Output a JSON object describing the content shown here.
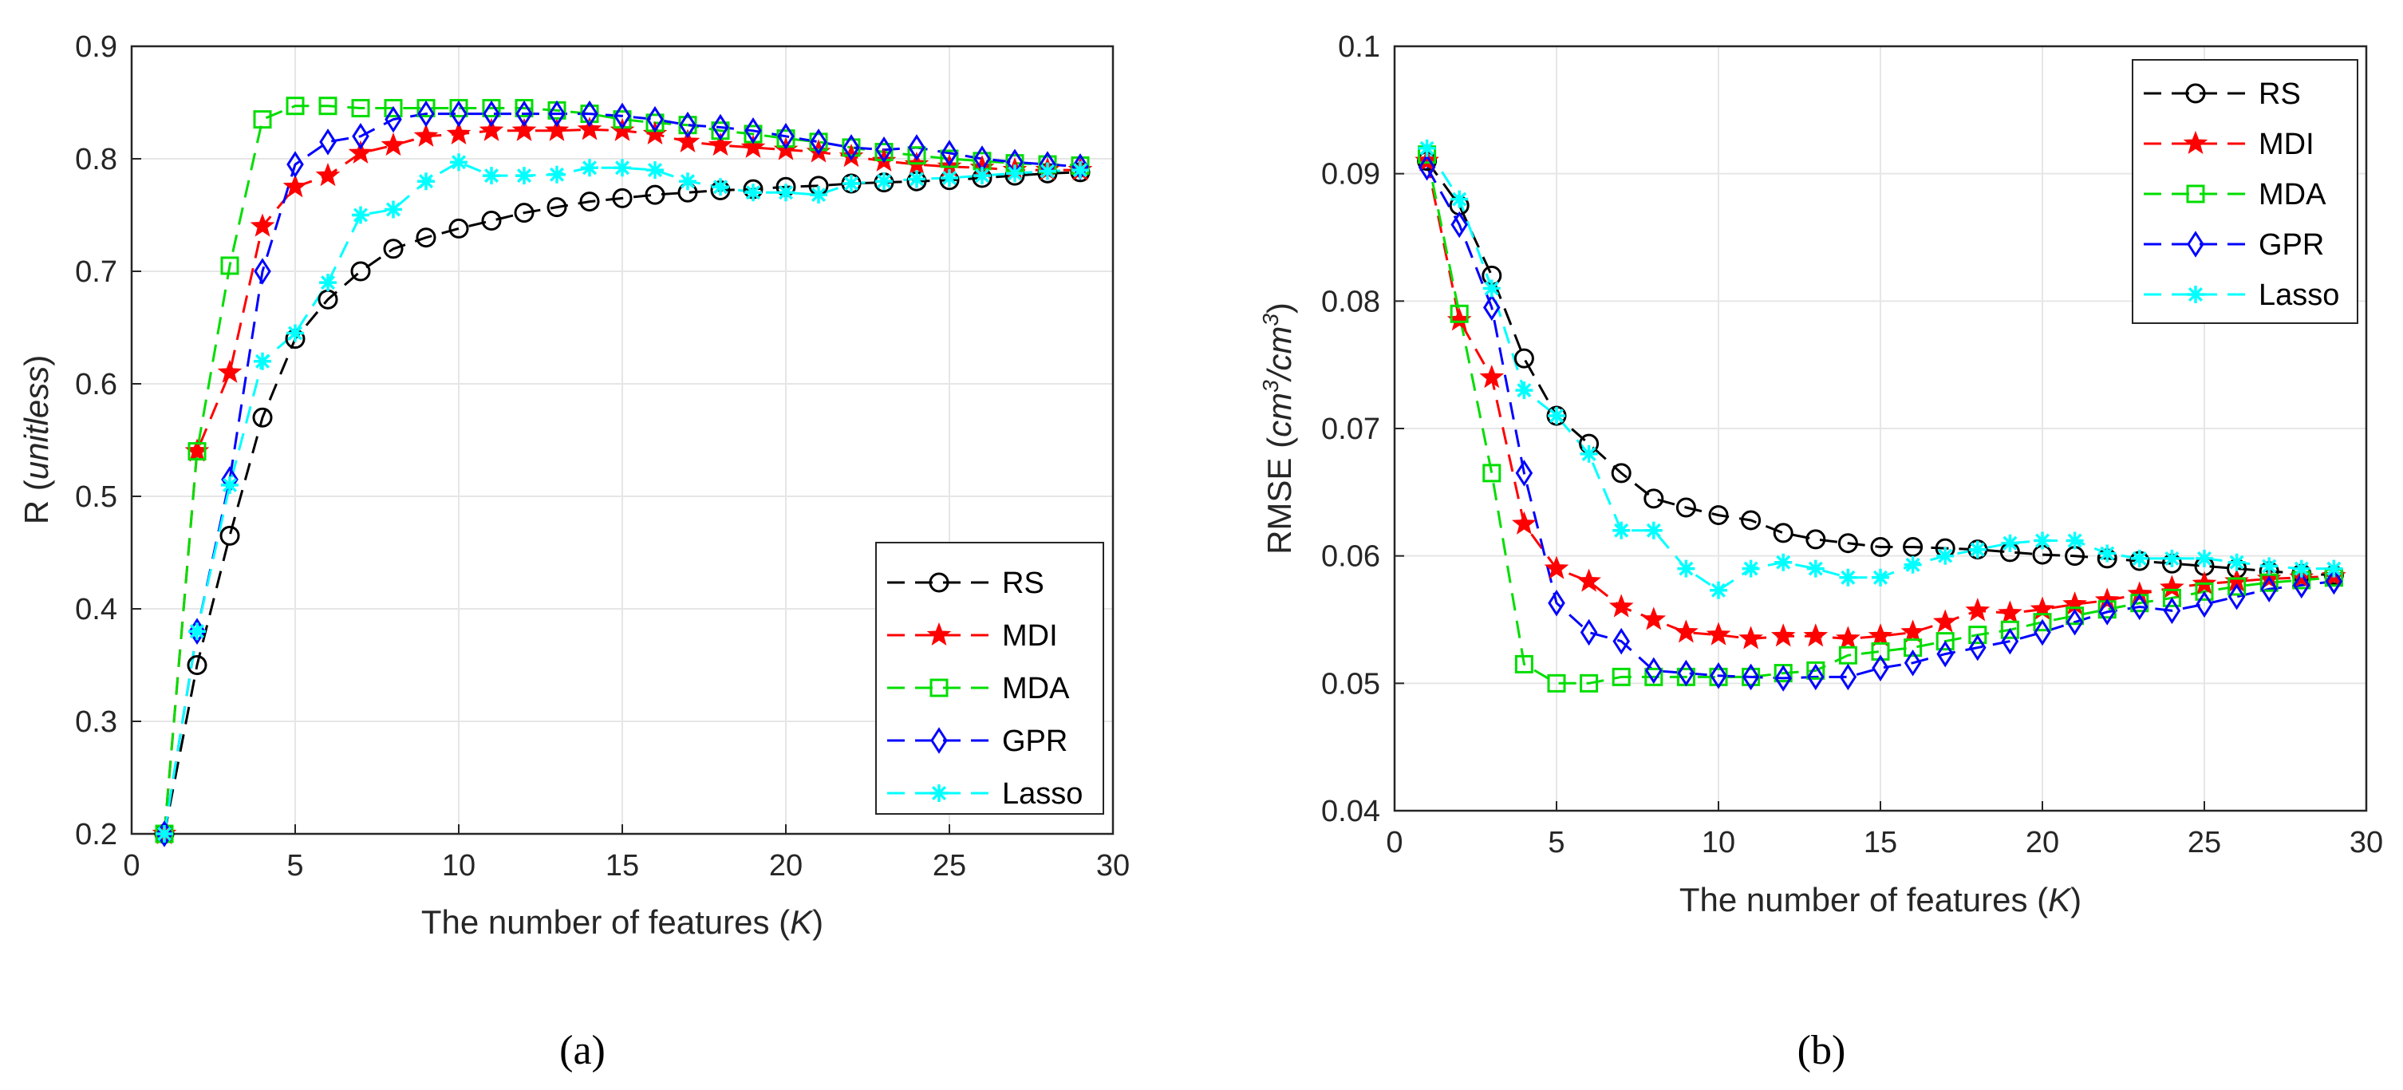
{
  "charts": [
    {
      "type": "line",
      "sublabel": "(a)",
      "xlabel_prefix": "The number of features (",
      "xlabel_var": "K",
      "xlabel_suffix": ")",
      "ylabel_prefix": "R (",
      "ylabel_var": "unitless",
      "ylabel_suffix": ")",
      "xlim": [
        0,
        30
      ],
      "ylim": [
        0.2,
        0.9
      ],
      "xticks": [
        0,
        5,
        10,
        15,
        20,
        25,
        30
      ],
      "yticks": [
        0.2,
        0.3,
        0.4,
        0.5,
        0.6,
        0.7,
        0.8,
        0.9
      ],
      "ytick_labels": [
        "0.2",
        "0.3",
        "0.4",
        "0.5",
        "0.6",
        "0.7",
        "0.8",
        "0.9"
      ],
      "grid": true,
      "legend_position": "bottom-right"
    },
    {
      "type": "line",
      "sublabel": "(b)",
      "xlabel_prefix": "The number of features (",
      "xlabel_var": "K",
      "xlabel_suffix": ")",
      "ylabel_prefix": "RMSE (",
      "ylabel_unit1": "cm",
      "ylabel_sup1": "3",
      "ylabel_slash": "/",
      "ylabel_unit2": "cm",
      "ylabel_sup2": "3",
      "ylabel_suffix": ")",
      "xlim": [
        0,
        30
      ],
      "ylim": [
        0.04,
        0.1
      ],
      "xticks": [
        0,
        5,
        10,
        15,
        20,
        25,
        30
      ],
      "yticks": [
        0.04,
        0.05,
        0.06,
        0.07,
        0.08,
        0.09,
        0.1
      ],
      "ytick_labels": [
        "0.04",
        "0.05",
        "0.06",
        "0.07",
        "0.08",
        "0.09",
        "0.1"
      ],
      "grid": true,
      "legend_position": "top-right"
    }
  ],
  "chart_data": [
    {
      "type": "line",
      "title": "",
      "xlabel": "The number of features (K)",
      "ylabel": "R (unitless)",
      "xlim": [
        0,
        30
      ],
      "ylim": [
        0.2,
        0.9
      ],
      "x": [
        1,
        2,
        3,
        4,
        5,
        6,
        7,
        8,
        9,
        10,
        11,
        12,
        13,
        14,
        15,
        16,
        17,
        18,
        19,
        20,
        21,
        22,
        23,
        24,
        25,
        26,
        27,
        28,
        29
      ],
      "series": [
        {
          "name": "RS",
          "color": "#000000",
          "marker": "circle",
          "values": [
            0.2,
            0.35,
            0.465,
            0.57,
            0.64,
            0.675,
            0.7,
            0.72,
            0.73,
            0.738,
            0.745,
            0.752,
            0.757,
            0.762,
            0.765,
            0.768,
            0.77,
            0.772,
            0.773,
            0.775,
            0.776,
            0.778,
            0.779,
            0.78,
            0.781,
            0.783,
            0.785,
            0.787,
            0.788
          ]
        },
        {
          "name": "MDI",
          "color": "#ff0000",
          "marker": "star",
          "values": [
            0.2,
            0.54,
            0.61,
            0.74,
            0.775,
            0.785,
            0.805,
            0.812,
            0.82,
            0.822,
            0.825,
            0.825,
            0.825,
            0.826,
            0.825,
            0.822,
            0.815,
            0.812,
            0.81,
            0.808,
            0.806,
            0.802,
            0.798,
            0.795,
            0.793,
            0.792,
            0.79,
            0.79,
            0.79
          ]
        },
        {
          "name": "MDA",
          "color": "#00dd00",
          "marker": "square",
          "values": [
            0.2,
            0.54,
            0.705,
            0.835,
            0.847,
            0.847,
            0.845,
            0.845,
            0.845,
            0.845,
            0.845,
            0.845,
            0.843,
            0.84,
            0.835,
            0.832,
            0.83,
            0.825,
            0.822,
            0.818,
            0.815,
            0.81,
            0.806,
            0.803,
            0.8,
            0.798,
            0.796,
            0.795,
            0.794
          ]
        },
        {
          "name": "GPR",
          "color": "#0000ff",
          "marker": "diamond",
          "values": [
            0.2,
            0.38,
            0.515,
            0.7,
            0.795,
            0.815,
            0.82,
            0.835,
            0.84,
            0.84,
            0.84,
            0.84,
            0.84,
            0.84,
            0.838,
            0.835,
            0.83,
            0.828,
            0.825,
            0.82,
            0.815,
            0.81,
            0.808,
            0.81,
            0.805,
            0.8,
            0.797,
            0.795,
            0.793
          ]
        },
        {
          "name": "Lasso",
          "color": "#00ffff",
          "marker": "asterisk",
          "values": [
            0.2,
            0.38,
            0.51,
            0.62,
            0.645,
            0.69,
            0.75,
            0.755,
            0.78,
            0.797,
            0.785,
            0.785,
            0.786,
            0.792,
            0.792,
            0.79,
            0.78,
            0.775,
            0.77,
            0.77,
            0.768,
            0.778,
            0.78,
            0.782,
            0.783,
            0.785,
            0.787,
            0.789,
            0.79
          ]
        }
      ]
    },
    {
      "type": "line",
      "title": "",
      "xlabel": "The number of features (K)",
      "ylabel": "RMSE (cm3/cm3)",
      "xlim": [
        0,
        30
      ],
      "ylim": [
        0.04,
        0.1
      ],
      "x": [
        1,
        2,
        3,
        4,
        5,
        6,
        7,
        8,
        9,
        10,
        11,
        12,
        13,
        14,
        15,
        16,
        17,
        18,
        19,
        20,
        21,
        22,
        23,
        24,
        25,
        26,
        27,
        28,
        29
      ],
      "series": [
        {
          "name": "RS",
          "color": "#000000",
          "marker": "circle",
          "values": [
            0.091,
            0.0875,
            0.082,
            0.0755,
            0.071,
            0.0688,
            0.0665,
            0.0645,
            0.0638,
            0.0632,
            0.0628,
            0.0618,
            0.0613,
            0.061,
            0.0607,
            0.0607,
            0.0606,
            0.0605,
            0.0603,
            0.0601,
            0.06,
            0.0598,
            0.0596,
            0.0594,
            0.0592,
            0.059,
            0.0588,
            0.0586,
            0.0585
          ]
        },
        {
          "name": "MDI",
          "color": "#ff0000",
          "marker": "star",
          "values": [
            0.091,
            0.0785,
            0.074,
            0.0625,
            0.059,
            0.058,
            0.056,
            0.055,
            0.054,
            0.0538,
            0.0535,
            0.0537,
            0.0537,
            0.0535,
            0.0537,
            0.054,
            0.0548,
            0.0557,
            0.0555,
            0.0558,
            0.0562,
            0.0565,
            0.057,
            0.0575,
            0.0578,
            0.058,
            0.0582,
            0.0583,
            0.0584
          ]
        },
        {
          "name": "MDA",
          "color": "#00dd00",
          "marker": "square",
          "values": [
            0.0915,
            0.079,
            0.0665,
            0.0515,
            0.05,
            0.05,
            0.0505,
            0.0505,
            0.0505,
            0.0505,
            0.0505,
            0.0508,
            0.051,
            0.0522,
            0.0525,
            0.0528,
            0.0533,
            0.0538,
            0.0542,
            0.0548,
            0.0553,
            0.0558,
            0.0563,
            0.0567,
            0.0572,
            0.0576,
            0.0579,
            0.0581,
            0.0583
          ]
        },
        {
          "name": "GPR",
          "color": "#0000ff",
          "marker": "diamond",
          "values": [
            0.0905,
            0.086,
            0.0795,
            0.0665,
            0.0563,
            0.054,
            0.0533,
            0.051,
            0.0508,
            0.0506,
            0.0505,
            0.0504,
            0.0505,
            0.0505,
            0.0512,
            0.0516,
            0.0523,
            0.0528,
            0.0533,
            0.054,
            0.0548,
            0.0556,
            0.056,
            0.0557,
            0.0562,
            0.0568,
            0.0574,
            0.0577,
            0.058
          ]
        },
        {
          "name": "Lasso",
          "color": "#00ffff",
          "marker": "asterisk",
          "values": [
            0.092,
            0.088,
            0.081,
            0.073,
            0.071,
            0.068,
            0.062,
            0.062,
            0.059,
            0.0573,
            0.059,
            0.0595,
            0.059,
            0.0583,
            0.0583,
            0.0593,
            0.06,
            0.0605,
            0.061,
            0.0612,
            0.0612,
            0.0602,
            0.0598,
            0.0598,
            0.0598,
            0.0595,
            0.0592,
            0.059,
            0.059
          ]
        }
      ]
    }
  ]
}
